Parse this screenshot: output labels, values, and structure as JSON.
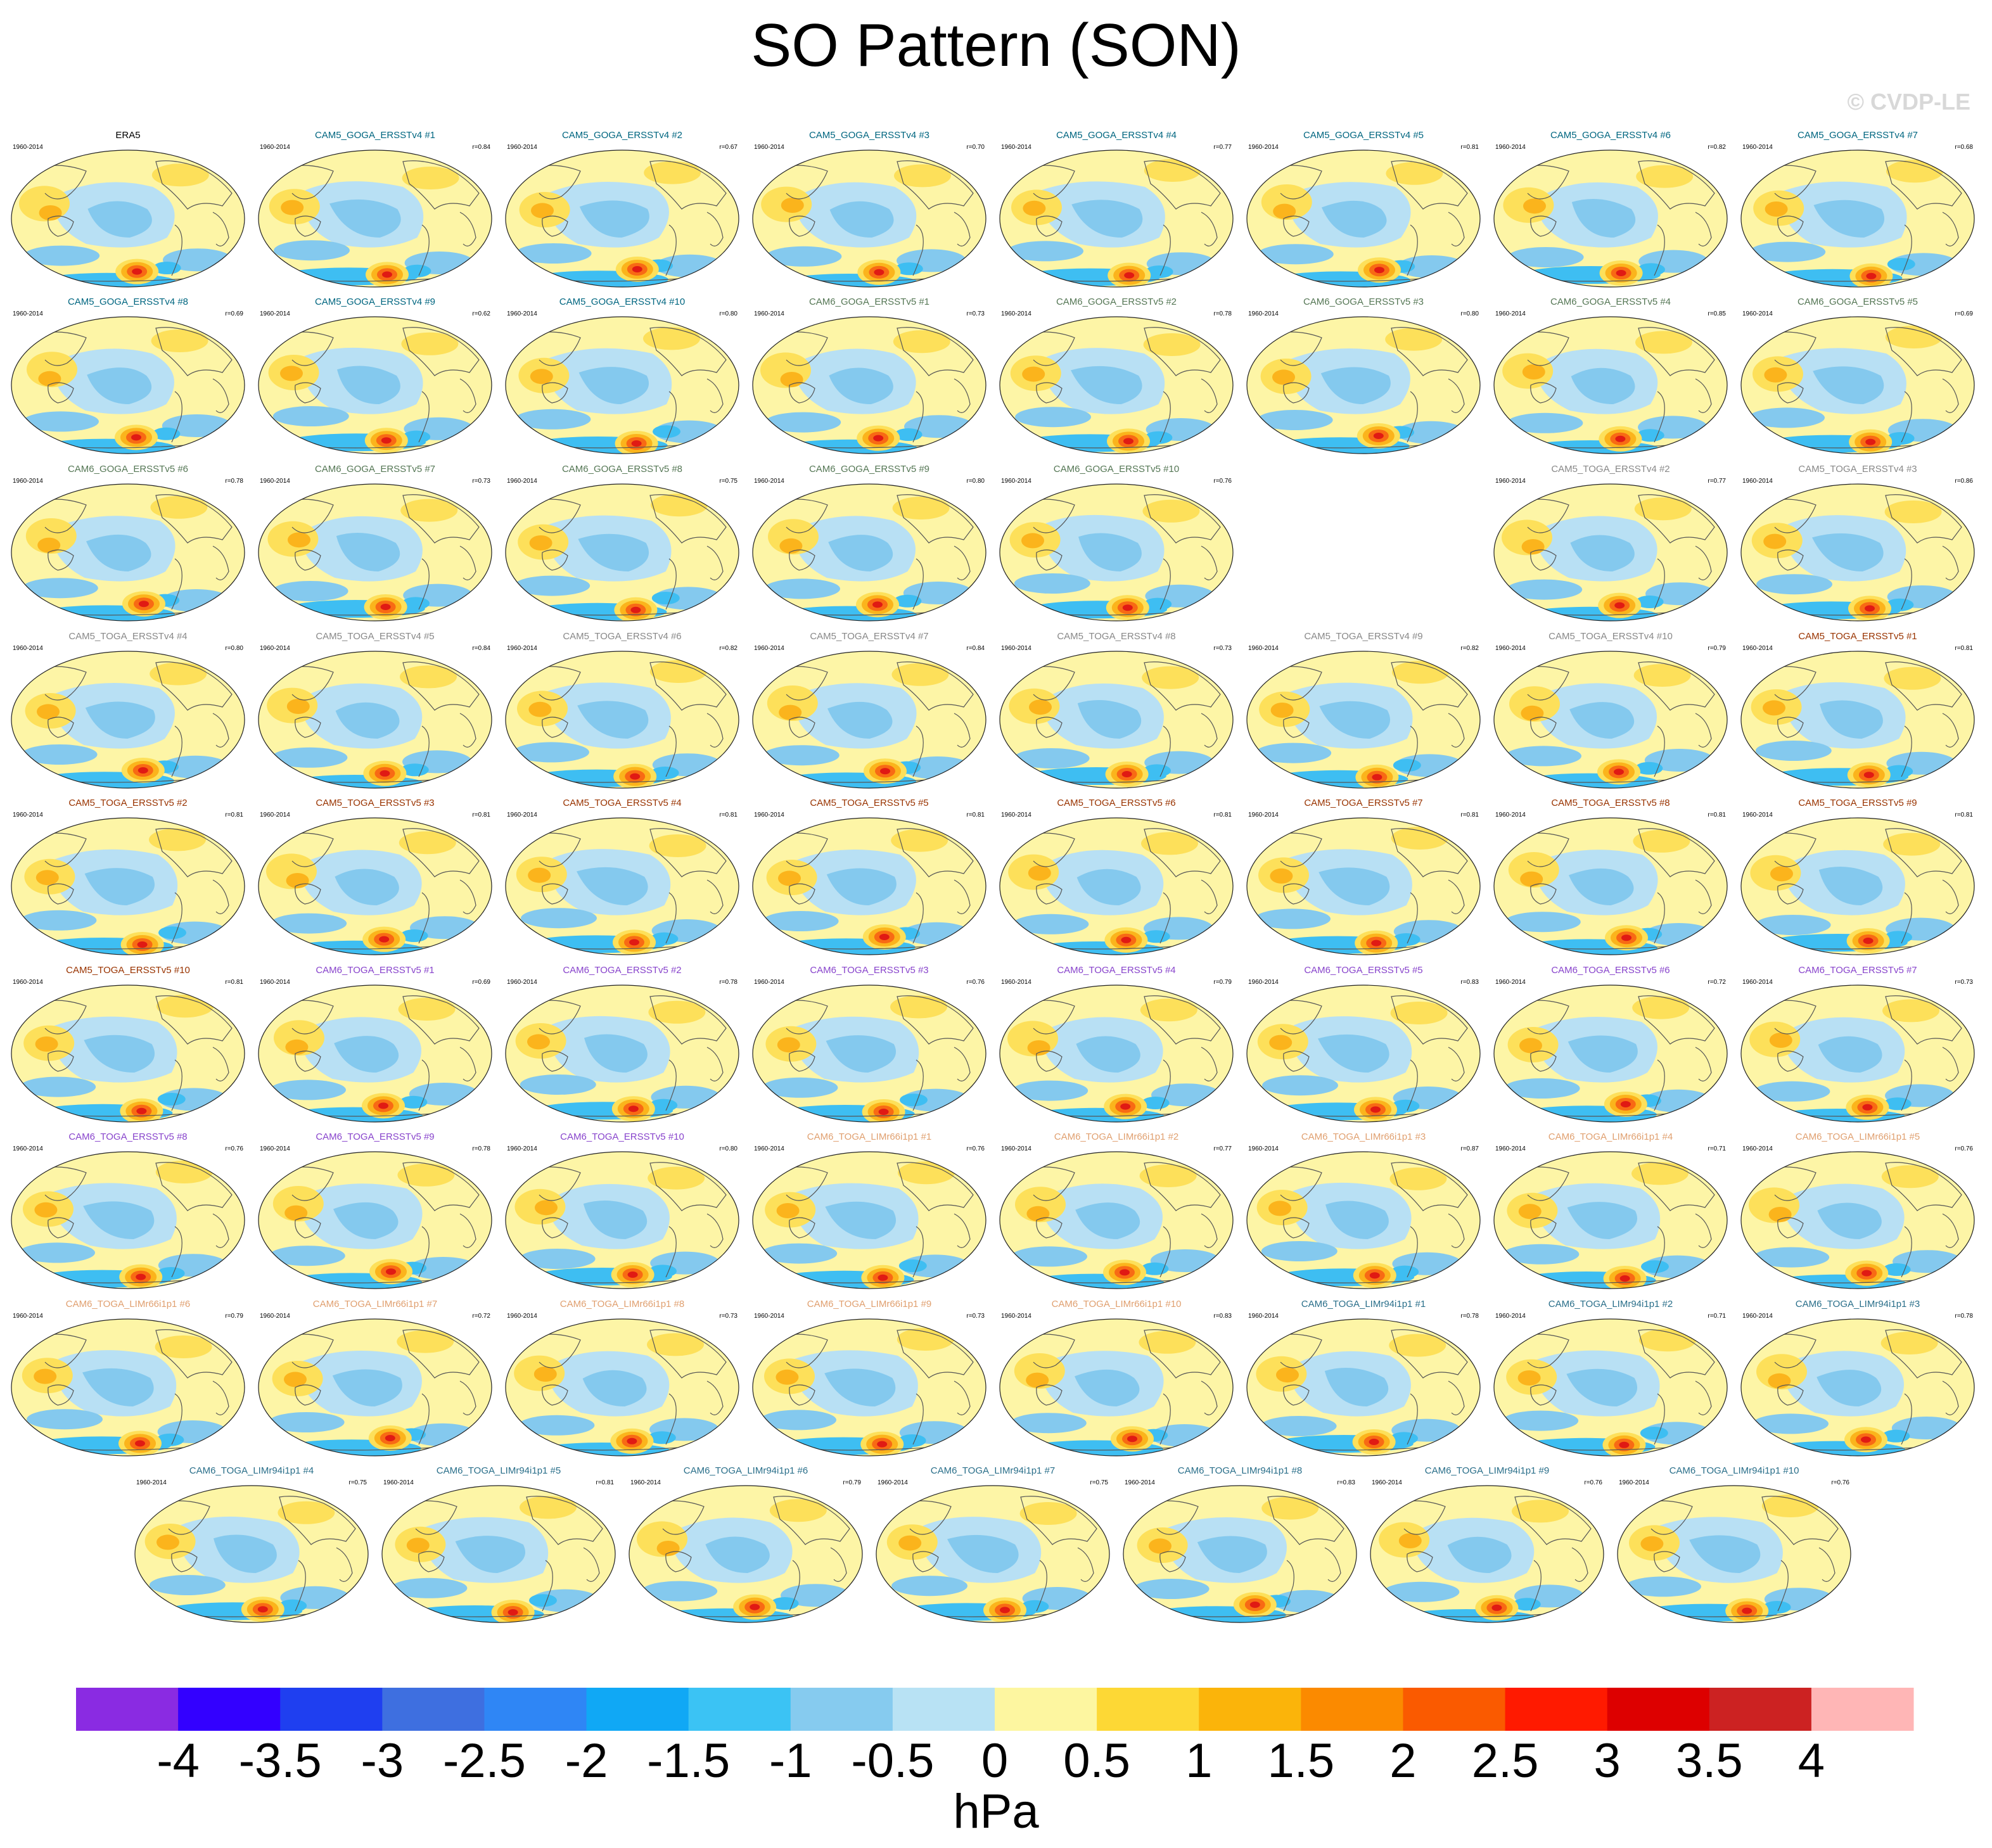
{
  "chart_data": {
    "type": "contour-map-panels",
    "title": "SO Pattern (SON)",
    "watermark": "© CVDP-LE",
    "units": "hPa",
    "period": "1960-2014",
    "colorbar": {
      "labels": [
        "-4",
        "-3.5",
        "-3",
        "-2.5",
        "-2",
        "-1.5",
        "-1",
        "-0.5",
        "0",
        "0.5",
        "1",
        "1.5",
        "2",
        "2.5",
        "3",
        "3.5",
        "4"
      ],
      "colors": [
        "#8a2be2",
        "#3300ff",
        "#1f3ff0",
        "#3e6fe0",
        "#2f86f5",
        "#10a8f5",
        "#3bc3f4",
        "#86cbef",
        "#b8e2f4",
        "#fdf6a0",
        "#fdd835",
        "#fbb40a",
        "#fb8a00",
        "#fa5a00",
        "#ff1a00",
        "#dd0000",
        "#cc2222",
        "#ffb6b6"
      ]
    },
    "palette": {
      "ocean_bg": "#fdf5a6",
      "light_blue": "#b8e0f4",
      "mid_blue": "#84c9ee",
      "blue": "#3ebef2",
      "deep_blue": "#1aa3f0",
      "yellow": "#fde05a",
      "orange": "#fbb41c",
      "red_orange": "#f86a14",
      "red": "#e01a14"
    },
    "panels": [
      {
        "name": "ERA5",
        "r": "",
        "color": "#000000"
      },
      {
        "name": "CAM5_GOGA_ERSSTv4 #1",
        "r": "r=0.84",
        "color": "#006680"
      },
      {
        "name": "CAM5_GOGA_ERSSTv4 #2",
        "r": "r=0.67",
        "color": "#006680"
      },
      {
        "name": "CAM5_GOGA_ERSSTv4 #3",
        "r": "r=0.70",
        "color": "#006680"
      },
      {
        "name": "CAM5_GOGA_ERSSTv4 #4",
        "r": "r=0.77",
        "color": "#006680"
      },
      {
        "name": "CAM5_GOGA_ERSSTv4 #5",
        "r": "r=0.81",
        "color": "#006680"
      },
      {
        "name": "CAM5_GOGA_ERSSTv4 #6",
        "r": "r=0.82",
        "color": "#006680"
      },
      {
        "name": "CAM5_GOGA_ERSSTv4 #7",
        "r": "r=0.68",
        "color": "#006680"
      },
      {
        "name": "CAM5_GOGA_ERSSTv4 #8",
        "r": "r=0.69",
        "color": "#006680"
      },
      {
        "name": "CAM5_GOGA_ERSSTv4 #9",
        "r": "r=0.62",
        "color": "#006680"
      },
      {
        "name": "CAM5_GOGA_ERSSTv4 #10",
        "r": "r=0.80",
        "color": "#006680"
      },
      {
        "name": "CAM6_GOGA_ERSSTv5 #1",
        "r": "r=0.73",
        "color": "#557755"
      },
      {
        "name": "CAM6_GOGA_ERSSTv5 #2",
        "r": "r=0.78",
        "color": "#557755"
      },
      {
        "name": "CAM6_GOGA_ERSSTv5 #3",
        "r": "r=0.80",
        "color": "#557755"
      },
      {
        "name": "CAM6_GOGA_ERSSTv5 #4",
        "r": "r=0.85",
        "color": "#557755"
      },
      {
        "name": "CAM6_GOGA_ERSSTv5 #5",
        "r": "r=0.69",
        "color": "#557755"
      },
      {
        "name": "CAM6_GOGA_ERSSTv5 #6",
        "r": "r=0.78",
        "color": "#557755"
      },
      {
        "name": "CAM6_GOGA_ERSSTv5 #7",
        "r": "r=0.73",
        "color": "#557755"
      },
      {
        "name": "CAM6_GOGA_ERSSTv5 #8",
        "r": "r=0.75",
        "color": "#557755"
      },
      {
        "name": "CAM6_GOGA_ERSSTv5 #9",
        "r": "r=0.80",
        "color": "#557755"
      },
      {
        "name": "CAM6_GOGA_ERSSTv5 #10",
        "r": "r=0.76",
        "color": "#557755"
      },
      null,
      {
        "name": "CAM5_TOGA_ERSSTv4 #2",
        "r": "r=0.77",
        "color": "#888888"
      },
      {
        "name": "CAM5_TOGA_ERSSTv4 #3",
        "r": "r=0.86",
        "color": "#888888"
      },
      {
        "name": "CAM5_TOGA_ERSSTv4 #4",
        "r": "r=0.80",
        "color": "#888888"
      },
      {
        "name": "CAM5_TOGA_ERSSTv4 #5",
        "r": "r=0.84",
        "color": "#888888"
      },
      {
        "name": "CAM5_TOGA_ERSSTv4 #6",
        "r": "r=0.82",
        "color": "#888888"
      },
      {
        "name": "CAM5_TOGA_ERSSTv4 #7",
        "r": "r=0.84",
        "color": "#888888"
      },
      {
        "name": "CAM5_TOGA_ERSSTv4 #8",
        "r": "r=0.73",
        "color": "#888888"
      },
      {
        "name": "CAM5_TOGA_ERSSTv4 #9",
        "r": "r=0.82",
        "color": "#888888"
      },
      {
        "name": "CAM5_TOGA_ERSSTv4 #10",
        "r": "r=0.79",
        "color": "#888888"
      },
      {
        "name": "CAM5_TOGA_ERSSTv5 #1",
        "r": "r=0.81",
        "color": "#993300"
      },
      {
        "name": "CAM5_TOGA_ERSSTv5 #2",
        "r": "r=0.81",
        "color": "#993300"
      },
      {
        "name": "CAM5_TOGA_ERSSTv5 #3",
        "r": "r=0.81",
        "color": "#993300"
      },
      {
        "name": "CAM5_TOGA_ERSSTv5 #4",
        "r": "r=0.81",
        "color": "#993300"
      },
      {
        "name": "CAM5_TOGA_ERSSTv5 #5",
        "r": "r=0.81",
        "color": "#993300"
      },
      {
        "name": "CAM5_TOGA_ERSSTv5 #6",
        "r": "r=0.81",
        "color": "#993300"
      },
      {
        "name": "CAM5_TOGA_ERSSTv5 #7",
        "r": "r=0.81",
        "color": "#993300"
      },
      {
        "name": "CAM5_TOGA_ERSSTv5 #8",
        "r": "r=0.81",
        "color": "#993300"
      },
      {
        "name": "CAM5_TOGA_ERSSTv5 #9",
        "r": "r=0.81",
        "color": "#993300"
      },
      {
        "name": "CAM5_TOGA_ERSSTv5 #10",
        "r": "r=0.81",
        "color": "#993300"
      },
      {
        "name": "CAM6_TOGA_ERSSTv5 #1",
        "r": "r=0.69",
        "color": "#8844cc"
      },
      {
        "name": "CAM6_TOGA_ERSSTv5 #2",
        "r": "r=0.78",
        "color": "#8844cc"
      },
      {
        "name": "CAM6_TOGA_ERSSTv5 #3",
        "r": "r=0.76",
        "color": "#8844cc"
      },
      {
        "name": "CAM6_TOGA_ERSSTv5 #4",
        "r": "r=0.79",
        "color": "#8844cc"
      },
      {
        "name": "CAM6_TOGA_ERSSTv5 #5",
        "r": "r=0.83",
        "color": "#8844cc"
      },
      {
        "name": "CAM6_TOGA_ERSSTv5 #6",
        "r": "r=0.72",
        "color": "#8844cc"
      },
      {
        "name": "CAM6_TOGA_ERSSTv5 #7",
        "r": "r=0.73",
        "color": "#8844cc"
      },
      {
        "name": "CAM6_TOGA_ERSSTv5 #8",
        "r": "r=0.76",
        "color": "#8844cc"
      },
      {
        "name": "CAM6_TOGA_ERSSTv5 #9",
        "r": "r=0.78",
        "color": "#8844cc"
      },
      {
        "name": "CAM6_TOGA_ERSSTv5 #10",
        "r": "r=0.80",
        "color": "#8844cc"
      },
      {
        "name": "CAM6_TOGA_LIMr66i1p1 #1",
        "r": "r=0.76",
        "color": "#e0a070"
      },
      {
        "name": "CAM6_TOGA_LIMr66i1p1 #2",
        "r": "r=0.77",
        "color": "#e0a070"
      },
      {
        "name": "CAM6_TOGA_LIMr66i1p1 #3",
        "r": "r=0.87",
        "color": "#e0a070"
      },
      {
        "name": "CAM6_TOGA_LIMr66i1p1 #4",
        "r": "r=0.71",
        "color": "#e0a070"
      },
      {
        "name": "CAM6_TOGA_LIMr66i1p1 #5",
        "r": "r=0.76",
        "color": "#e0a070"
      },
      {
        "name": "CAM6_TOGA_LIMr66i1p1 #6",
        "r": "r=0.79",
        "color": "#e0a070"
      },
      {
        "name": "CAM6_TOGA_LIMr66i1p1 #7",
        "r": "r=0.72",
        "color": "#e0a070"
      },
      {
        "name": "CAM6_TOGA_LIMr66i1p1 #8",
        "r": "r=0.73",
        "color": "#e0a070"
      },
      {
        "name": "CAM6_TOGA_LIMr66i1p1 #9",
        "r": "r=0.73",
        "color": "#e0a070"
      },
      {
        "name": "CAM6_TOGA_LIMr66i1p1 #10",
        "r": "r=0.83",
        "color": "#e0a070"
      },
      {
        "name": "CAM6_TOGA_LIMr94i1p1 #1",
        "r": "r=0.78",
        "color": "#2a6f8a"
      },
      {
        "name": "CAM6_TOGA_LIMr94i1p1 #2",
        "r": "r=0.71",
        "color": "#2a6f8a"
      },
      {
        "name": "CAM6_TOGA_LIMr94i1p1 #3",
        "r": "r=0.78",
        "color": "#2a6f8a"
      },
      {
        "name": "CAM6_TOGA_LIMr94i1p1 #4",
        "r": "r=0.75",
        "color": "#2a6f8a"
      },
      {
        "name": "CAM6_TOGA_LIMr94i1p1 #5",
        "r": "r=0.81",
        "color": "#2a6f8a"
      },
      {
        "name": "CAM6_TOGA_LIMr94i1p1 #6",
        "r": "r=0.79",
        "color": "#2a6f8a"
      },
      {
        "name": "CAM6_TOGA_LIMr94i1p1 #7",
        "r": "r=0.75",
        "color": "#2a6f8a"
      },
      {
        "name": "CAM6_TOGA_LIMr94i1p1 #8",
        "r": "r=0.83",
        "color": "#2a6f8a"
      },
      {
        "name": "CAM6_TOGA_LIMr94i1p1 #9",
        "r": "r=0.76",
        "color": "#2a6f8a"
      },
      {
        "name": "CAM6_TOGA_LIMr94i1p1 #10",
        "r": "r=0.76",
        "color": "#2a6f8a"
      }
    ]
  }
}
